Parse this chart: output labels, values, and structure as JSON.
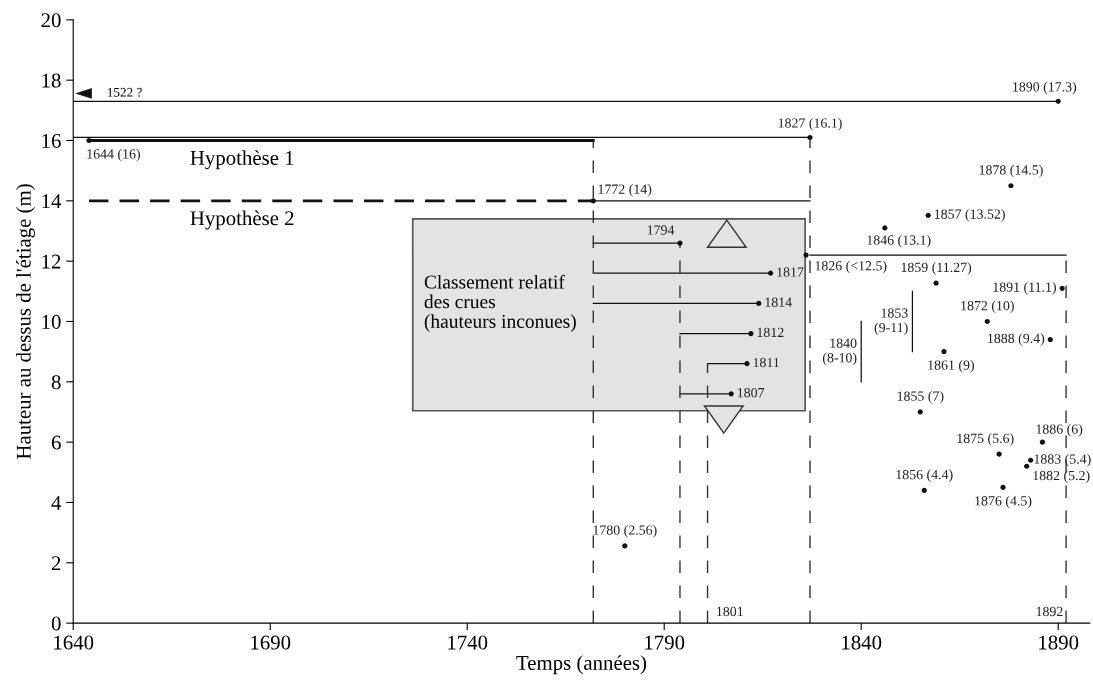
{
  "chart_data": {
    "type": "scatter",
    "xlabel": "Temps (années)",
    "ylabel": "Hauteur au dessus de l'étiage (m)",
    "xlim": [
      1640,
      1898
    ],
    "xticks": [
      1640,
      1690,
      1740,
      1790,
      1840,
      1890
    ],
    "ylim": [
      0,
      20
    ],
    "yticks": [
      0,
      2,
      4,
      6,
      8,
      10,
      12,
      14,
      16,
      18,
      20
    ],
    "grid": false,
    "legend": false,
    "series": [
      {
        "marker": "circle",
        "color": "#111111",
        "x": [
          1890,
          1644,
          1827,
          1772,
          1780,
          1794,
          1817,
          1814,
          1812,
          1811,
          1807,
          1826,
          1846,
          1878,
          1857,
          1859,
          1891,
          1872,
          1888,
          1861,
          1855,
          1886,
          1875,
          1883,
          1882,
          1856,
          1876
        ],
        "values": [
          17.3,
          16,
          16.1,
          14,
          2.56,
          12.6,
          11.6,
          10.6,
          9.6,
          8.6,
          7.6,
          12.2,
          13.1,
          14.5,
          13.52,
          11.27,
          11.1,
          10,
          9.4,
          9,
          7,
          6,
          5.6,
          5.4,
          5.2,
          4.4,
          4.5
        ]
      },
      {
        "type": "line",
        "name": "Hypothèse 1",
        "color": "#111111",
        "line_style": "solid",
        "x": [
          1644,
          1772
        ],
        "values": [
          16,
          16
        ]
      },
      {
        "type": "line",
        "name": "Hypothèse 2",
        "color": "#111111",
        "line_style": "dashed",
        "x": [
          1644,
          1772
        ],
        "values": [
          14,
          14
        ]
      },
      {
        "type": "line",
        "color": "#111111",
        "line_style": "solid",
        "x": [
          1640,
          1890
        ],
        "values": [
          17.3,
          17.3
        ]
      },
      {
        "type": "line",
        "color": "#111111",
        "line_style": "solid",
        "x": [
          1640,
          1827
        ],
        "values": [
          16.1,
          16.1
        ]
      },
      {
        "type": "line",
        "color": "#111111",
        "line_style": "solid",
        "x": [
          1772,
          1827
        ],
        "values": [
          14,
          14
        ]
      },
      {
        "type": "line",
        "color": "#111111",
        "line_style": "solid",
        "x": [
          1827,
          1892
        ],
        "values": [
          12.2,
          12.2
        ]
      },
      {
        "type": "line",
        "color": "#111111",
        "line_style": "solid",
        "x": [
          1772,
          1794
        ],
        "values": [
          12.6,
          12.6
        ]
      },
      {
        "type": "line",
        "color": "#111111",
        "line_style": "solid",
        "x": [
          1772,
          1817
        ],
        "values": [
          11.6,
          11.6
        ]
      },
      {
        "type": "line",
        "color": "#111111",
        "line_style": "solid",
        "x": [
          1772,
          1814
        ],
        "values": [
          10.6,
          10.6
        ]
      },
      {
        "type": "line",
        "color": "#111111",
        "line_style": "solid",
        "x": [
          1794,
          1812
        ],
        "values": [
          9.6,
          9.6
        ]
      },
      {
        "type": "line",
        "color": "#111111",
        "line_style": "solid",
        "x": [
          1801,
          1811
        ],
        "values": [
          8.6,
          8.6
        ]
      },
      {
        "type": "line",
        "color": "#111111",
        "line_style": "solid",
        "x": [
          1794,
          1807
        ],
        "values": [
          7.6,
          7.6
        ]
      },
      {
        "type": "line",
        "color": "#111111",
        "line_style": "solid",
        "x": [
          1853,
          1853
        ],
        "values": [
          9,
          11
        ]
      },
      {
        "type": "line",
        "color": "#111111",
        "line_style": "solid",
        "x": [
          1840,
          1840
        ],
        "values": [
          8,
          10
        ]
      },
      {
        "type": "line",
        "color": "#333333",
        "line_style": "dashed",
        "x": [
          1772,
          1772
        ],
        "values": [
          0,
          16
        ]
      },
      {
        "type": "line",
        "color": "#333333",
        "line_style": "dashed",
        "x": [
          1794,
          1794
        ],
        "values": [
          0,
          12.6
        ]
      },
      {
        "type": "line",
        "color": "#333333",
        "line_style": "dashed",
        "x": [
          1801,
          1801
        ],
        "values": [
          0,
          8.6
        ]
      },
      {
        "type": "line",
        "color": "#333333",
        "line_style": "dashed",
        "x": [
          1827,
          1827
        ],
        "values": [
          0,
          16.1
        ]
      },
      {
        "type": "line",
        "color": "#333333",
        "line_style": "dashed",
        "x": [
          1892,
          1892
        ],
        "values": [
          0,
          12.2
        ]
      }
    ],
    "annotations": [
      {
        "text": "1890 (17.3)",
        "x": 1890,
        "y": 17.3
      },
      {
        "text": "1644 (16)",
        "x": 1644,
        "y": 16
      },
      {
        "text": "1827 (16.1)",
        "x": 1827,
        "y": 16.1
      },
      {
        "text": "1772 (14)",
        "x": 1772,
        "y": 14
      },
      {
        "text": "1780 (2.56)",
        "x": 1780,
        "y": 2.56
      },
      {
        "text": "1794",
        "x": 1794,
        "y": 12.6
      },
      {
        "text": "1817",
        "x": 1817,
        "y": 11.6
      },
      {
        "text": "1814",
        "x": 1814,
        "y": 10.6
      },
      {
        "text": "1812",
        "x": 1812,
        "y": 9.6
      },
      {
        "text": "1811",
        "x": 1811,
        "y": 8.6
      },
      {
        "text": "1807",
        "x": 1807,
        "y": 7.6
      },
      {
        "text": "1826 (<12.5)",
        "x": 1826,
        "y": 12.2
      },
      {
        "text": "1846 (13.1)",
        "x": 1846,
        "y": 13.1
      },
      {
        "text": "1878 (14.5)",
        "x": 1878,
        "y": 14.5
      },
      {
        "text": "1857 (13.52)",
        "x": 1857,
        "y": 13.52
      },
      {
        "text": "1859 (11.27)",
        "x": 1859,
        "y": 11.27
      },
      {
        "text": "1891 (11.1)",
        "x": 1891,
        "y": 11.1
      },
      {
        "text": "1872 (10)",
        "x": 1872,
        "y": 10
      },
      {
        "text": "1888 (9.4)",
        "x": 1888,
        "y": 9.4
      },
      {
        "text": "1861 (9)",
        "x": 1861,
        "y": 9
      },
      {
        "text": "1855 (7)",
        "x": 1855,
        "y": 7
      },
      {
        "text": "1886 (6)",
        "x": 1886,
        "y": 6
      },
      {
        "text": "1875 (5.6)",
        "x": 1875,
        "y": 5.6
      },
      {
        "text": "1883 (5.4)",
        "x": 1883,
        "y": 5.4
      },
      {
        "text": "1882 (5.2)",
        "x": 1882,
        "y": 5.2
      },
      {
        "text": "1856 (4.4)",
        "x": 1856,
        "y": 4.4
      },
      {
        "text": "1876 (4.5)",
        "x": 1876,
        "y": 4.5
      },
      {
        "text": "1853\n(9-11)",
        "x": 1853,
        "y": 10
      },
      {
        "text": "1840\n(8-10)",
        "x": 1840,
        "y": 9
      },
      {
        "text": "1801",
        "x": 1801,
        "y": 0
      },
      {
        "text": "1892",
        "x": 1892,
        "y": 0
      },
      "1522 ?",
      "Classement relatif\ndes crues\n(hauteurs inconues)"
    ]
  }
}
